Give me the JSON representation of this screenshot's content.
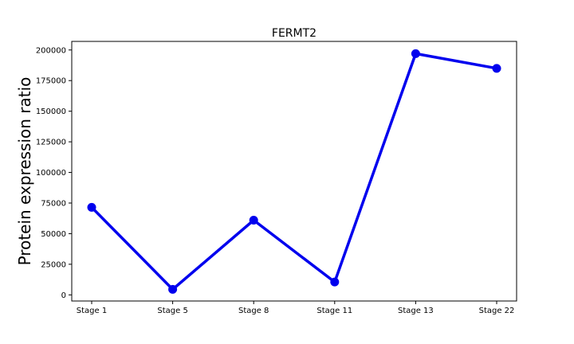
{
  "chart_data": {
    "type": "line",
    "title": "FERMT2",
    "xlabel": "",
    "ylabel": "Protein expression ratio",
    "categories": [
      "Stage 1",
      "Stage 5",
      "Stage 8",
      "Stage 11",
      "Stage 13",
      "Stage 22"
    ],
    "series": [
      {
        "values": [
          71500,
          4500,
          61000,
          10500,
          197000,
          185000
        ]
      }
    ],
    "ylim": [
      -5000,
      207000
    ],
    "yticks": [
      0,
      25000,
      50000,
      75000,
      100000,
      125000,
      150000,
      175000,
      200000
    ],
    "ytick_labels": [
      "0",
      "25000",
      "50000",
      "75000",
      "100000",
      "125000",
      "150000",
      "175000",
      "200000"
    ],
    "grid": false,
    "line_color": "#0000ee",
    "marker": "circle"
  }
}
